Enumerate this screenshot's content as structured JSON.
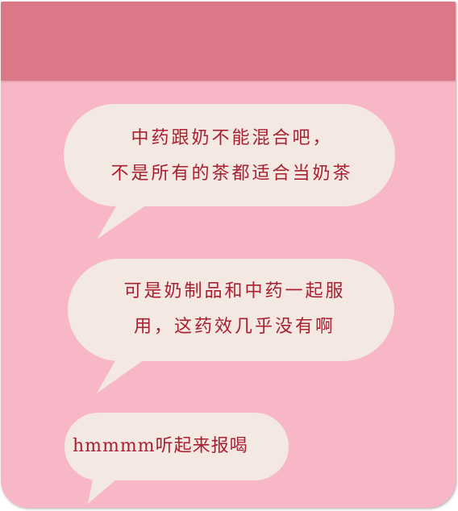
{
  "conversation": {
    "messages": [
      {
        "lines": [
          "中药跟奶不能混合吧，",
          "不是所有的茶都适合当奶茶"
        ]
      },
      {
        "lines": [
          "可是奶制品和中药一起服",
          "用，这药效几乎没有啊"
        ]
      },
      {
        "lines": [
          "hmmmm听起来报喝"
        ]
      }
    ]
  },
  "colors": {
    "background": "#f7b7c6",
    "header": "#db7887",
    "bubble": "#f4e8e3",
    "text": "#a8202f"
  }
}
